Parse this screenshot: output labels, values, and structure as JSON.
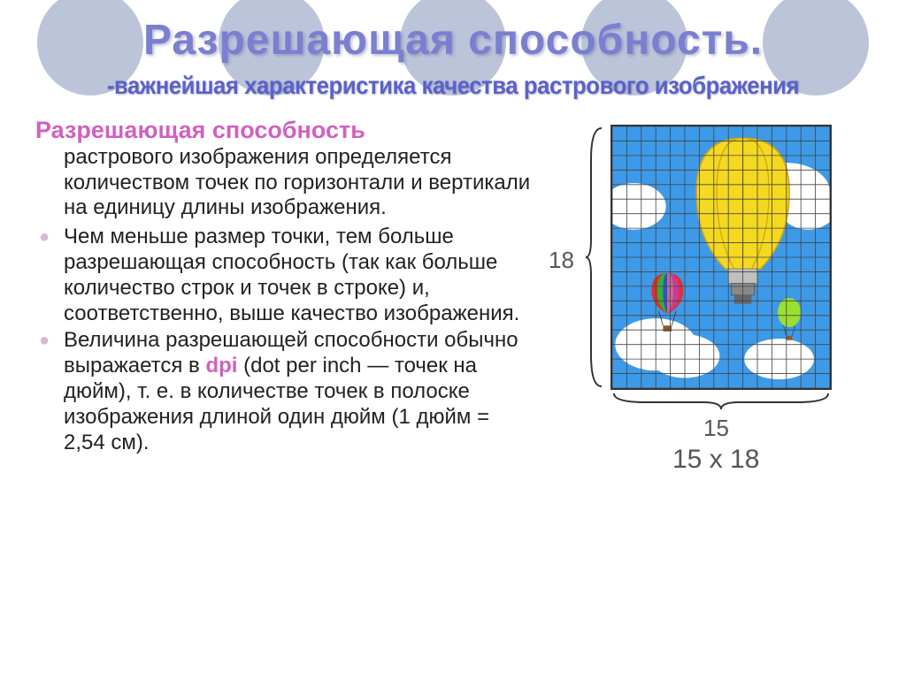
{
  "title": "Разрешающая способность.",
  "subtitle": "-важнейшая характеристика качества растрового изображения",
  "lead_phrase": "Разрешающая способность",
  "lead_cont": "растрового изображения определяется количеством точек по горизонтали и вертикали на единицу длины изображения.",
  "bullets": [
    "Чем меньше размер точки, тем больше разрешающая способность (так как больше количество строк и точек в строке) и, соответственно, выше качество изображения.",
    {
      "pre": "Величина разрешающей способности обычно выражается в ",
      "dpi": "dpi",
      "post": " (dot per inch — точек на дюйм), т. е. в количестве точек в полоске изображения длиной один дюйм (1 дюйм = 2,54 см)."
    }
  ],
  "diagram": {
    "grid_cols": 15,
    "grid_rows": 18,
    "label_v": "18",
    "label_h": "15",
    "label_dims": "15 x 18",
    "sky_color": "#3d9ae8",
    "cloud_color": "#ffffff",
    "bulb_yellow": "#f5d820",
    "bulb_dark": "#d0a810",
    "base_color": "#888888",
    "balloon1_colors": [
      "#e03030",
      "#30b030",
      "#3050d0",
      "#e0d030",
      "#c040c0"
    ],
    "balloon2_color": "#9ae030",
    "grid_line_color": "#444444"
  },
  "colors": {
    "title_color": "#7a7fd1",
    "subtitle_color": "#5a62c8",
    "accent_pink": "#d060c0",
    "bullet_color": "#d8b8d0",
    "circle_bg": "#bcc4da",
    "text_color": "#222222",
    "label_gray": "#555555"
  },
  "fonts": {
    "title_size": 48,
    "subtitle_size": 28,
    "body_size": 24,
    "lead_size": 27,
    "diagram_label_size": 26
  }
}
